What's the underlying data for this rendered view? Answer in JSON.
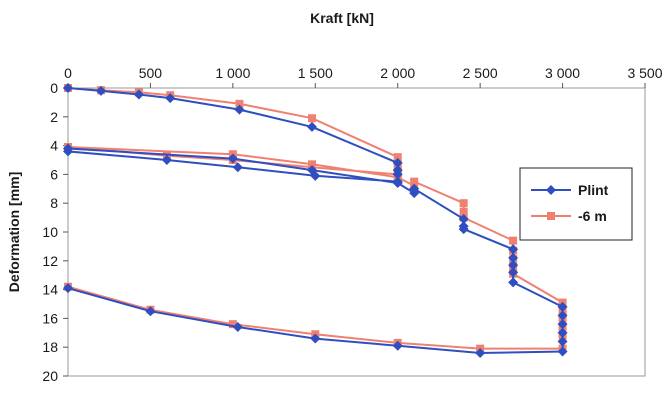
{
  "chart_data": {
    "type": "line",
    "xlabel": "Kraft [kN]",
    "ylabel": "Deformation [mm]",
    "x_ticks": [
      "0",
      "500",
      "1 000",
      "1 500",
      "2 000",
      "2 500",
      "3 000",
      "3 500"
    ],
    "y_ticks": [
      "0",
      "2",
      "4",
      "6",
      "8",
      "10",
      "12",
      "14",
      "16",
      "18",
      "20"
    ],
    "xlim": [
      0,
      3500
    ],
    "ylim": [
      0,
      20
    ],
    "x_axis_position": "top",
    "y_axis_reversed": true,
    "grid": false,
    "legend_position": "right",
    "series": [
      {
        "name": "Plint",
        "color": "#2f4fc0",
        "marker": "diamond",
        "points": [
          [
            0,
            0
          ],
          [
            200,
            0.2
          ],
          [
            430,
            0.45
          ],
          [
            620,
            0.7
          ],
          [
            1040,
            1.5
          ],
          [
            1480,
            2.7
          ],
          [
            2000,
            5.2
          ],
          [
            2000,
            5.7
          ],
          [
            2000,
            6.0
          ],
          [
            2000,
            6.5
          ],
          [
            1500,
            6.1
          ],
          [
            1030,
            5.5
          ],
          [
            600,
            5.0
          ],
          [
            0,
            4.4
          ],
          [
            0,
            4.2
          ],
          [
            1000,
            4.9
          ],
          [
            1480,
            5.7
          ],
          [
            2000,
            6.6
          ],
          [
            2100,
            7.3
          ],
          [
            2100,
            7.0
          ],
          [
            2400,
            9.1
          ],
          [
            2400,
            9.6
          ],
          [
            2400,
            9.8
          ],
          [
            2700,
            11.2
          ],
          [
            2700,
            11.8
          ],
          [
            2700,
            12.3
          ],
          [
            2700,
            12.8
          ],
          [
            2700,
            13.5
          ],
          [
            3000,
            15.2
          ],
          [
            3000,
            15.8
          ],
          [
            3000,
            16.4
          ],
          [
            3000,
            17.0
          ],
          [
            3000,
            17.6
          ],
          [
            3000,
            18.3
          ],
          [
            2500,
            18.4
          ],
          [
            2000,
            17.9
          ],
          [
            1500,
            17.4
          ],
          [
            1030,
            16.6
          ],
          [
            500,
            15.5
          ],
          [
            0,
            13.9
          ]
        ]
      },
      {
        "name": "-6 m",
        "color": "#f08070",
        "marker": "square",
        "points": [
          [
            0,
            0
          ],
          [
            200,
            0.15
          ],
          [
            430,
            0.3
          ],
          [
            620,
            0.5
          ],
          [
            1040,
            1.1
          ],
          [
            1480,
            2.1
          ],
          [
            2000,
            4.8
          ],
          [
            2000,
            5.3
          ],
          [
            2000,
            5.7
          ],
          [
            2000,
            6.0
          ],
          [
            1480,
            5.5
          ],
          [
            1000,
            5.0
          ],
          [
            600,
            4.7
          ],
          [
            0,
            4.1
          ],
          [
            0,
            4.1
          ],
          [
            1000,
            4.6
          ],
          [
            1480,
            5.3
          ],
          [
            2000,
            6.2
          ],
          [
            2100,
            6.8
          ],
          [
            2100,
            6.5
          ],
          [
            2400,
            8.0
          ],
          [
            2400,
            8.6
          ],
          [
            2400,
            9.0
          ],
          [
            2700,
            10.6
          ],
          [
            2700,
            11.3
          ],
          [
            2700,
            11.9
          ],
          [
            2700,
            12.4
          ],
          [
            2700,
            12.9
          ],
          [
            3000,
            14.9
          ],
          [
            3000,
            15.5
          ],
          [
            3000,
            16.0
          ],
          [
            3000,
            16.6
          ],
          [
            3000,
            17.2
          ],
          [
            3000,
            18.1
          ],
          [
            2500,
            18.1
          ],
          [
            2000,
            17.7
          ],
          [
            1500,
            17.1
          ],
          [
            1000,
            16.4
          ],
          [
            500,
            15.4
          ],
          [
            0,
            13.8
          ]
        ]
      }
    ]
  }
}
